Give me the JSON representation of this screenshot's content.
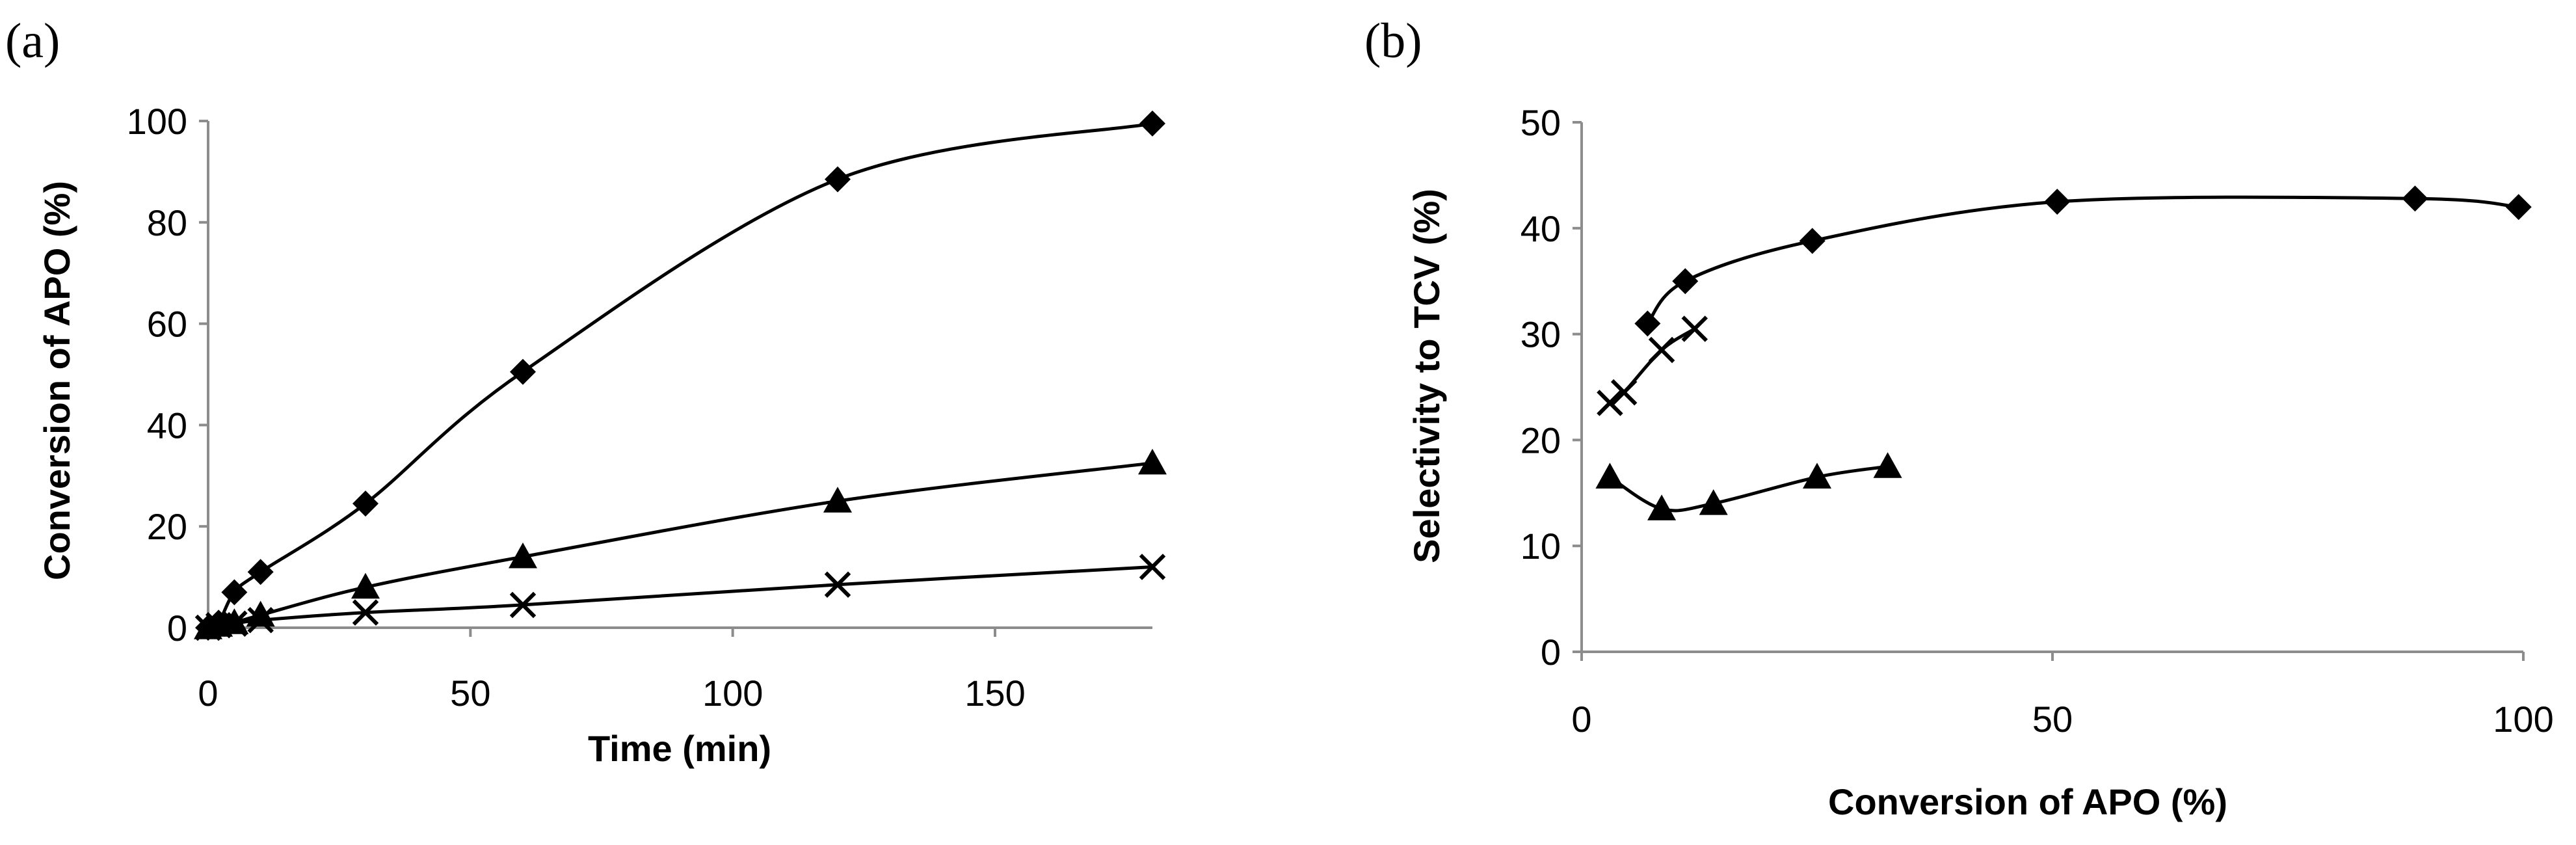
{
  "chart_data": [
    {
      "panel_label": "(a)",
      "type": "line",
      "title": "",
      "xlabel": "Time (min)",
      "ylabel": "Conversion of APO (%)",
      "xlim": [
        0,
        180
      ],
      "ylim": [
        0,
        100
      ],
      "xticks": [
        0,
        50,
        100,
        150
      ],
      "xtick_labels": [
        "0",
        "50",
        "100",
        "150"
      ],
      "yticks": [
        0,
        20,
        40,
        60,
        80,
        100
      ],
      "ytick_labels": [
        "0",
        "20",
        "40",
        "60",
        "80",
        "100"
      ],
      "grid": false,
      "legend": "none",
      "series": [
        {
          "name": "diamond",
          "marker": "diamond",
          "x": [
            0,
            2,
            5,
            10,
            30,
            60,
            120,
            180
          ],
          "y": [
            0,
            1,
            7,
            11,
            24.5,
            50.5,
            88.5,
            99.5
          ]
        },
        {
          "name": "triangle",
          "marker": "triangle",
          "x": [
            0,
            2,
            5,
            10,
            30,
            60,
            120,
            180
          ],
          "y": [
            0,
            0.5,
            1,
            2.5,
            8,
            14,
            25,
            32.5
          ]
        },
        {
          "name": "cross",
          "marker": "cross",
          "x": [
            0,
            2,
            5,
            10,
            30,
            60,
            120,
            180
          ],
          "y": [
            0,
            0.5,
            0.8,
            1.5,
            3,
            4.5,
            8.5,
            12
          ]
        }
      ]
    },
    {
      "panel_label": "(b)",
      "type": "line",
      "title": "",
      "xlabel": "Conversion of APO (%)",
      "ylabel": "Selectivity to TCV (%)",
      "xlim": [
        0,
        100
      ],
      "ylim": [
        0,
        50
      ],
      "xticks": [
        0,
        50,
        100
      ],
      "xtick_labels": [
        "0",
        "50",
        "100"
      ],
      "yticks": [
        0,
        10,
        20,
        30,
        40,
        50
      ],
      "ytick_labels": [
        "0",
        "10",
        "20",
        "30",
        "40",
        "50"
      ],
      "grid": false,
      "legend": "none",
      "series": [
        {
          "name": "diamond",
          "marker": "diamond",
          "x": [
            7,
            11,
            24.5,
            50.5,
            88.5,
            99.5
          ],
          "y": [
            31,
            35,
            38.8,
            42.5,
            42.8,
            42
          ]
        },
        {
          "name": "triangle",
          "marker": "triangle",
          "x": [
            3,
            8.5,
            14,
            25,
            32.5
          ],
          "y": [
            16.5,
            13.5,
            14,
            16.5,
            17.5
          ]
        },
        {
          "name": "cross",
          "marker": "cross",
          "x": [
            3,
            4.5,
            8.5,
            12
          ],
          "y": [
            23.5,
            24.5,
            28.5,
            30.5
          ]
        }
      ]
    }
  ]
}
